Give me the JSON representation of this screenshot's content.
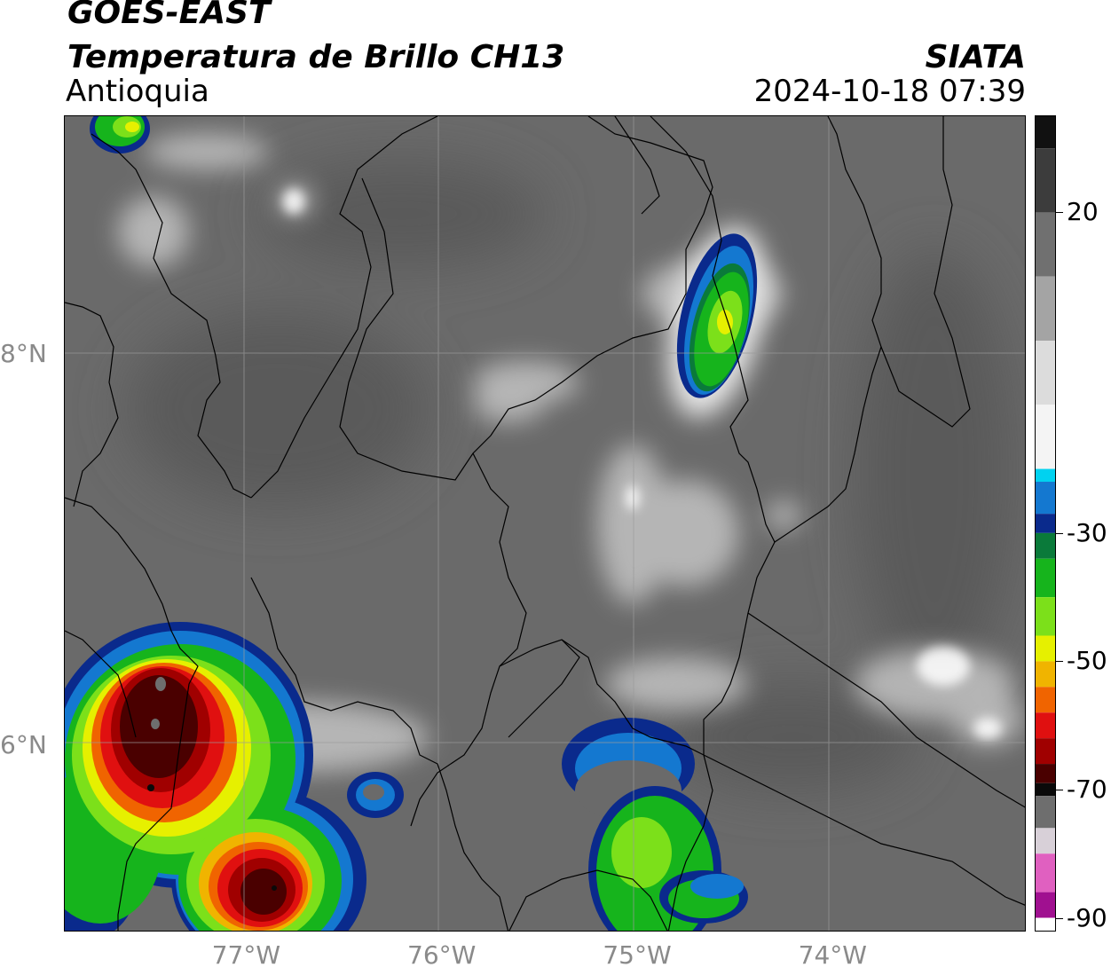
{
  "header": {
    "satellite": "GOES-EAST",
    "product": "Temperatura de Brillo CH13",
    "region": "Antioquia",
    "brand": "SIATA",
    "datetime": "2024-10-18 07:39"
  },
  "map": {
    "lon_range": [
      -77.92,
      -73.0
    ],
    "lat_range": [
      5.05,
      9.22
    ],
    "lat_labels": [
      {
        "lat": 8,
        "label": "8°N"
      },
      {
        "lat": 6,
        "label": "6°N"
      }
    ],
    "lon_labels": [
      {
        "lon": -77,
        "label": "77°W"
      },
      {
        "lon": -76,
        "label": "76°W"
      },
      {
        "lon": -75,
        "label": "75°W"
      },
      {
        "lon": -74,
        "label": "74°W"
      }
    ],
    "gridlines": true,
    "colors": {
      "background_gray": "#6a6a6a",
      "warm_gray": "#5c5c5c",
      "cloud_white": "#e6e6e6",
      "border_line": "#000000"
    }
  },
  "colorbar": {
    "units_range": [
      -92,
      35
    ],
    "ticks": [
      {
        "value": 20,
        "label": "20"
      },
      {
        "value": -30,
        "label": "-30"
      },
      {
        "value": -50,
        "label": "-50"
      },
      {
        "value": -70,
        "label": "-70"
      },
      {
        "value": -90,
        "label": "-90"
      }
    ],
    "scale": [
      {
        "from": 35,
        "to": 30,
        "color": "#111111"
      },
      {
        "from": 30,
        "to": 20,
        "color": "#3c3c3c"
      },
      {
        "from": 20,
        "to": 10,
        "color": "#707070"
      },
      {
        "from": 10,
        "to": 0,
        "color": "#a4a4a4"
      },
      {
        "from": 0,
        "to": -10,
        "color": "#dcdcdc"
      },
      {
        "from": -10,
        "to": -20,
        "color": "#f4f4f4"
      },
      {
        "from": -20,
        "to": -22,
        "color": "#00d2f0"
      },
      {
        "from": -22,
        "to": -27,
        "color": "#1478d0"
      },
      {
        "from": -27,
        "to": -30,
        "color": "#0a2a8c"
      },
      {
        "from": -30,
        "to": -34,
        "color": "#0a7a3a"
      },
      {
        "from": -34,
        "to": -40,
        "color": "#16b41c"
      },
      {
        "from": -40,
        "to": -46,
        "color": "#7ce01a"
      },
      {
        "from": -46,
        "to": -50,
        "color": "#e6f000"
      },
      {
        "from": -50,
        "to": -54,
        "color": "#f0b400"
      },
      {
        "from": -54,
        "to": -58,
        "color": "#f06400"
      },
      {
        "from": -58,
        "to": -62,
        "color": "#e01010"
      },
      {
        "from": -62,
        "to": -66,
        "color": "#a00000"
      },
      {
        "from": -66,
        "to": -69,
        "color": "#4a0000"
      },
      {
        "from": -69,
        "to": -71,
        "color": "#0a0a0a"
      },
      {
        "from": -71,
        "to": -76,
        "color": "#6e6e6e"
      },
      {
        "from": -76,
        "to": -80,
        "color": "#d8d0d8"
      },
      {
        "from": -80,
        "to": -86,
        "color": "#e060c0"
      },
      {
        "from": -86,
        "to": -90,
        "color": "#a01090"
      },
      {
        "from": -90,
        "to": -92,
        "color": "#ffffff"
      }
    ]
  }
}
